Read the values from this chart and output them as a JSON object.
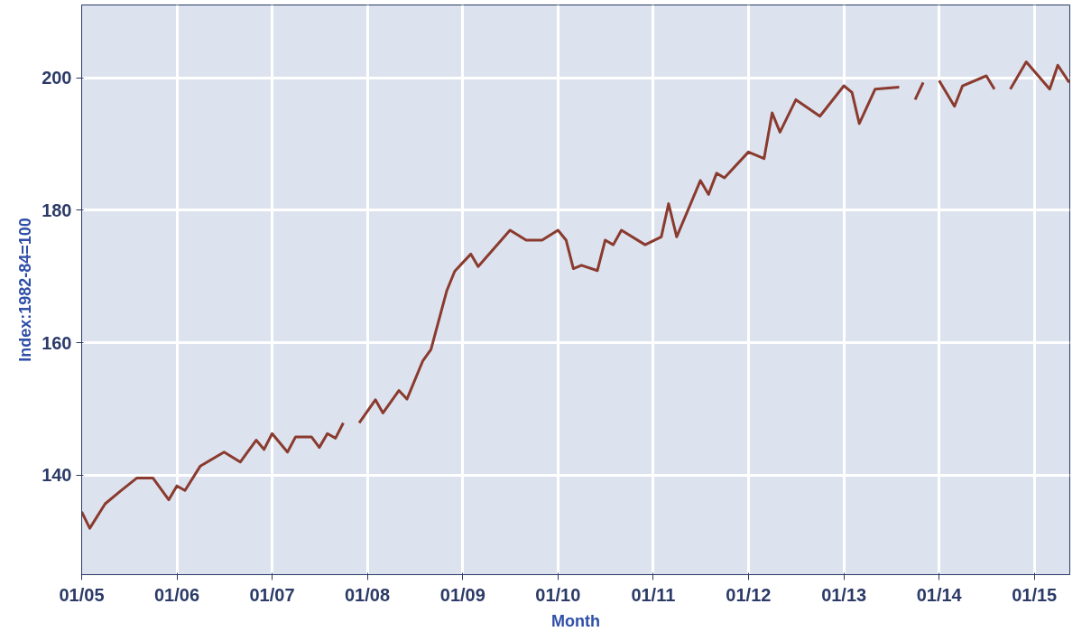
{
  "chart_data": {
    "type": "line",
    "xlabel": "Month",
    "ylabel": "Index:1982-84=100",
    "x": [
      "2005-01",
      "2005-02",
      "2005-04",
      "2005-06",
      "2005-08",
      "2005-10",
      "2005-12",
      "2006-01",
      "2006-02",
      "2006-04",
      "2006-07",
      "2006-09",
      "2006-11",
      "2006-12",
      "2007-01",
      "2007-03",
      "2007-04",
      "2007-06",
      "2007-07",
      "2007-08",
      "2007-09",
      "2007-10",
      "2007-11",
      "2007-12",
      "2008-02",
      "2008-03",
      "2008-05",
      "2008-06",
      "2008-08",
      "2008-09",
      "2008-11",
      "2008-12",
      "2009-02",
      "2009-03",
      "2009-07",
      "2009-09",
      "2009-11",
      "2010-01",
      "2010-02",
      "2010-03",
      "2010-04",
      "2010-06",
      "2010-07",
      "2010-08",
      "2010-09",
      "2010-12",
      "2011-02",
      "2011-03",
      "2011-04",
      "2011-07",
      "2011-08",
      "2011-09",
      "2011-10",
      "2012-01",
      "2012-03",
      "2012-04",
      "2012-05",
      "2012-07",
      "2012-10",
      "2013-01",
      "2013-02",
      "2013-03",
      "2013-05",
      "2013-08",
      "2013-09",
      "2013-10",
      "2013-11",
      "2013-12",
      "2014-01",
      "2014-03",
      "2014-04",
      "2014-07",
      "2014-08",
      "2014-09",
      "2014-10",
      "2014-12",
      "2015-03",
      "2015-04",
      "2015-05-15"
    ],
    "series": [
      {
        "color": "#8b3a2e",
        "values": [
          134.5,
          132.0,
          135.7,
          137.7,
          139.6,
          139.6,
          136.3,
          138.4,
          137.7,
          141.4,
          143.5,
          142.0,
          145.3,
          143.9,
          146.3,
          143.5,
          145.8,
          145.8,
          144.2,
          146.3,
          145.6,
          147.9,
          null,
          147.9,
          151.4,
          149.4,
          152.8,
          151.5,
          157.3,
          159.0,
          167.9,
          170.8,
          173.4,
          171.5,
          177.0,
          175.5,
          175.5,
          177.0,
          175.5,
          171.2,
          171.7,
          170.9,
          175.5,
          174.8,
          177.0,
          174.8,
          176.0,
          181.0,
          176.0,
          184.5,
          182.4,
          185.6,
          184.9,
          188.8,
          187.8,
          194.7,
          191.8,
          196.7,
          194.2,
          198.8,
          197.8,
          193.1,
          198.3,
          198.6,
          null,
          196.7,
          199.3,
          null,
          199.6,
          195.7,
          198.8,
          200.3,
          198.3,
          null,
          198.3,
          202.4,
          198.3,
          201.9,
          199.3
        ]
      }
    ],
    "xlim": [
      "2005-01",
      "2015-05-17"
    ],
    "xticks": [
      {
        "value": "2005-01",
        "label": "01/05"
      },
      {
        "value": "2006-01",
        "label": "01/06"
      },
      {
        "value": "2007-01",
        "label": "01/07"
      },
      {
        "value": "2008-01",
        "label": "01/08"
      },
      {
        "value": "2009-01",
        "label": "01/09"
      },
      {
        "value": "2010-01",
        "label": "01/10"
      },
      {
        "value": "2011-01",
        "label": "01/11"
      },
      {
        "value": "2012-01",
        "label": "01/12"
      },
      {
        "value": "2013-01",
        "label": "01/13"
      },
      {
        "value": "2014-01",
        "label": "01/14"
      },
      {
        "value": "2015-01",
        "label": "01/15"
      }
    ],
    "ylim": [
      125,
      211
    ],
    "yticks": [
      140,
      160,
      180,
      200
    ],
    "grid": true,
    "line_style": "solid",
    "marker": "none"
  }
}
